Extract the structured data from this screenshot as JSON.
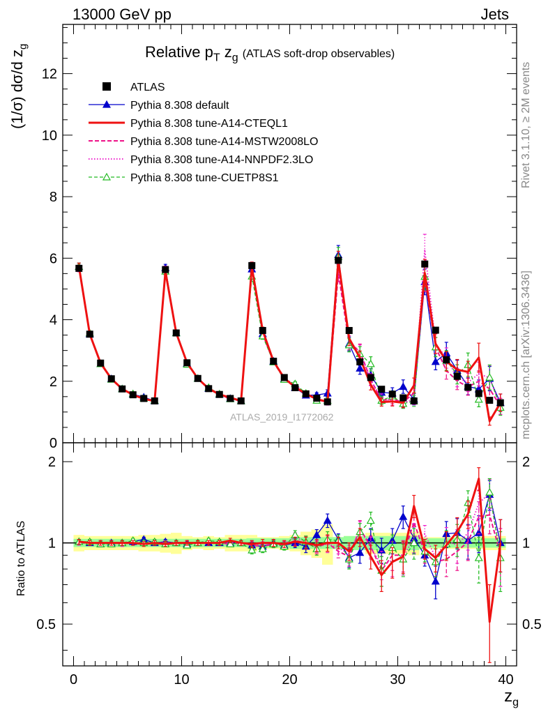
{
  "header": {
    "energy": "13000 GeV pp",
    "process": "Jets"
  },
  "side_text": {
    "rivet": "Rivet 3.1.10, ≥ 2M events",
    "mcplots": "mcplots.cern.ch [arXiv:1306.3436]"
  },
  "labels": {
    "title_main": "Relative p",
    "title_sub_T": "T",
    "title_z": "z",
    "title_sub_g": "g",
    "title_tail": "(ATLAS soft-drop observables)",
    "ylabel_main": "(1/σ) dσ/d z",
    "ylabel_main_sub": "g",
    "ylabel_ratio": "Ratio to ATLAS",
    "xlabel": "z",
    "xlabel_sub": "g",
    "analysis": "ATLAS_2019_I1772062"
  },
  "colors": {
    "atlas": "#000000",
    "default": "#0000cc",
    "cteql1": "#ee1111",
    "mstw": "#ee1188",
    "nnpdf": "#ee22cc",
    "cuetp8s1": "#22bb22",
    "band_outer": "#ffff99",
    "band_inner": "#99ff99"
  },
  "chart_data": {
    "type": "line",
    "x": [
      0.5,
      1.5,
      2.5,
      3.5,
      4.5,
      5.5,
      6.5,
      7.5,
      8.5,
      9.5,
      10.5,
      11.5,
      12.5,
      13.5,
      14.5,
      15.5,
      16.5,
      17.5,
      18.5,
      19.5,
      20.5,
      21.5,
      22.5,
      23.5,
      24.5,
      25.5,
      26.5,
      27.5,
      28.5,
      29.5,
      30.5,
      31.5,
      32.5,
      33.5,
      34.5,
      35.5,
      36.5,
      37.5,
      38.5,
      39.5
    ],
    "xlim": [
      -1,
      41
    ],
    "main": {
      "ylim": [
        0,
        13.6
      ],
      "yticks": [
        0,
        2,
        4,
        6,
        8,
        10,
        12
      ],
      "yticklabels": [
        "0",
        "2",
        "4",
        "6",
        "8",
        "10",
        "12"
      ]
    },
    "ratio": {
      "ylim": [
        0.35,
        2.35
      ],
      "yticks": [
        0.5,
        1,
        2
      ],
      "yticklabels": [
        "0.5",
        "1",
        "2"
      ]
    },
    "xticks": [
      0,
      10,
      20,
      30,
      40
    ],
    "xticklabels": [
      "0",
      "10",
      "20",
      "30",
      "40"
    ],
    "legend_position": "top-left",
    "atlas": {
      "name": "ATLAS",
      "values": [
        5.67,
        3.53,
        2.59,
        2.08,
        1.75,
        1.56,
        1.44,
        1.36,
        5.63,
        3.57,
        2.6,
        2.09,
        1.76,
        1.57,
        1.44,
        1.36,
        5.76,
        3.65,
        2.65,
        2.12,
        1.79,
        1.59,
        1.45,
        1.33,
        5.93,
        3.65,
        2.63,
        2.12,
        1.74,
        1.58,
        1.46,
        1.36,
        5.81,
        3.66,
        2.7,
        2.16,
        1.8,
        1.6,
        1.38,
        1.3
      ],
      "band_inner": [
        0.035,
        0.035,
        0.035,
        0.035,
        0.035,
        0.035,
        0.035,
        0.035,
        0.035,
        0.035,
        0.035,
        0.035,
        0.035,
        0.035,
        0.035,
        0.035,
        0.04,
        0.04,
        0.04,
        0.04,
        0.05,
        0.05,
        0.05,
        0.05,
        0.05,
        0.06,
        0.06,
        0.06,
        0.06,
        0.06,
        0.06,
        0.06,
        0.04,
        0.04,
        0.04,
        0.04,
        0.04,
        0.04,
        0.04,
        0.04
      ],
      "band_outer": [
        0.07,
        0.06,
        0.06,
        0.06,
        0.06,
        0.06,
        0.07,
        0.07,
        0.08,
        0.09,
        0.06,
        0.05,
        0.06,
        0.05,
        0.07,
        0.07,
        0.07,
        0.05,
        0.05,
        0.06,
        0.07,
        0.1,
        0.12,
        0.17,
        0.05,
        0.06,
        0.06,
        0.09,
        0.09,
        0.09,
        0.09,
        0.1,
        0.05,
        0.05,
        0.05,
        0.05,
        0.05,
        0.05,
        0.06,
        0.06
      ]
    },
    "series": [
      {
        "name": "Pythia 8.308 default",
        "key": "default",
        "marker": "triangle-filled",
        "dash": "",
        "width": 1.3,
        "ratio": [
          1.01,
          1.0,
          0.99,
          1.0,
          1.0,
          1.01,
          1.03,
          1.0,
          1.01,
          1.0,
          0.99,
          1.0,
          1.0,
          1.0,
          1.0,
          1.0,
          0.98,
          0.97,
          1.0,
          0.98,
          1.0,
          0.97,
          1.07,
          1.21,
          1.03,
          0.88,
          0.92,
          1.04,
          0.94,
          1.02,
          1.25,
          1.04,
          0.9,
          0.72,
          1.08,
          1.09,
          1.02,
          1.09,
          1.51,
          1.0
        ],
        "err": [
          0.02,
          0.02,
          0.02,
          0.02,
          0.02,
          0.02,
          0.02,
          0.02,
          0.02,
          0.02,
          0.02,
          0.02,
          0.02,
          0.02,
          0.02,
          0.02,
          0.03,
          0.03,
          0.03,
          0.03,
          0.04,
          0.05,
          0.05,
          0.07,
          0.05,
          0.07,
          0.08,
          0.09,
          0.1,
          0.11,
          0.12,
          0.13,
          0.08,
          0.1,
          0.12,
          0.14,
          0.15,
          0.17,
          0.19,
          0.22
        ]
      },
      {
        "name": "Pythia 8.308 tune-A14-CTEQL1",
        "key": "cteql1",
        "marker": "none",
        "dash": "",
        "width": 3,
        "ratio": [
          1.01,
          1.0,
          1.0,
          1.0,
          1.0,
          1.0,
          0.99,
          1.0,
          0.99,
          1.0,
          1.0,
          1.0,
          1.0,
          1.0,
          1.02,
          1.0,
          0.99,
          1.0,
          1.0,
          0.99,
          1.01,
          1.0,
          0.98,
          1.0,
          1.0,
          0.93,
          1.05,
          0.89,
          0.76,
          0.85,
          0.89,
          1.37,
          0.95,
          0.88,
          0.98,
          1.1,
          1.28,
          1.73,
          0.51,
          1.0
        ],
        "err": [
          0.02,
          0.02,
          0.02,
          0.02,
          0.02,
          0.02,
          0.02,
          0.02,
          0.02,
          0.02,
          0.02,
          0.02,
          0.02,
          0.02,
          0.02,
          0.02,
          0.03,
          0.03,
          0.03,
          0.03,
          0.04,
          0.05,
          0.05,
          0.07,
          0.05,
          0.07,
          0.08,
          0.09,
          0.1,
          0.11,
          0.12,
          0.13,
          0.08,
          0.1,
          0.12,
          0.14,
          0.15,
          0.17,
          0.19,
          0.22
        ]
      },
      {
        "name": "Pythia 8.308 tune-A14-MSTW2008LO",
        "key": "mstw",
        "marker": "none",
        "dash": "6,3",
        "width": 2,
        "ratio": [
          1.0,
          1.0,
          1.0,
          1.0,
          1.0,
          1.0,
          1.0,
          1.0,
          1.0,
          1.0,
          1.0,
          1.0,
          1.0,
          1.0,
          0.99,
          1.0,
          0.98,
          0.97,
          0.99,
          0.98,
          1.02,
          1.0,
          0.96,
          1.0,
          0.93,
          0.89,
          1.13,
          0.97,
          0.79,
          0.9,
          0.9,
          1.19,
          0.92,
          0.85,
          0.87,
          0.93,
          1.01,
          1.25,
          1.27,
          0.91
        ],
        "err": [
          0.02,
          0.02,
          0.02,
          0.02,
          0.02,
          0.02,
          0.02,
          0.02,
          0.02,
          0.02,
          0.02,
          0.02,
          0.02,
          0.02,
          0.02,
          0.02,
          0.03,
          0.03,
          0.03,
          0.03,
          0.04,
          0.05,
          0.05,
          0.07,
          0.05,
          0.07,
          0.08,
          0.09,
          0.1,
          0.11,
          0.12,
          0.13,
          0.08,
          0.1,
          0.12,
          0.14,
          0.15,
          0.17,
          0.19,
          0.22
        ]
      },
      {
        "name": "Pythia 8.308 tune-A14-NNPDF2.3LO",
        "key": "nnpdf",
        "marker": "none",
        "dash": "1.5,2.5",
        "width": 2,
        "ratio": [
          1.0,
          1.0,
          1.0,
          1.0,
          0.99,
          1.0,
          1.0,
          1.0,
          1.0,
          1.0,
          1.0,
          1.0,
          1.0,
          1.0,
          1.0,
          1.0,
          0.99,
          0.98,
          1.0,
          0.99,
          1.05,
          1.01,
          0.97,
          0.99,
          0.96,
          0.91,
          1.12,
          0.96,
          0.83,
          0.86,
          0.88,
          1.05,
          1.08,
          0.88,
          1.02,
          0.98,
          1.09,
          1.4,
          1.53,
          0.91
        ],
        "err": [
          0.02,
          0.02,
          0.02,
          0.02,
          0.02,
          0.02,
          0.02,
          0.02,
          0.02,
          0.02,
          0.02,
          0.02,
          0.02,
          0.02,
          0.02,
          0.02,
          0.03,
          0.03,
          0.03,
          0.03,
          0.04,
          0.05,
          0.05,
          0.07,
          0.05,
          0.07,
          0.08,
          0.09,
          0.1,
          0.11,
          0.12,
          0.13,
          0.08,
          0.1,
          0.12,
          0.14,
          0.15,
          0.17,
          0.19,
          0.22
        ]
      },
      {
        "name": "Pythia 8.308 tune-CUETP8S1",
        "key": "cuetp8s1",
        "marker": "triangle-open",
        "dash": "5,3",
        "width": 1.3,
        "ratio": [
          1.01,
          1.01,
          0.99,
          0.99,
          1.0,
          1.02,
          1.0,
          1.01,
          0.99,
          1.0,
          0.98,
          1.0,
          1.02,
          1.01,
          0.99,
          1.0,
          0.94,
          0.95,
          0.99,
          0.97,
          1.07,
          1.01,
          0.95,
          1.03,
          1.02,
          0.87,
          1.1,
          1.21,
          0.79,
          0.96,
          0.87,
          1.0,
          0.93,
          0.85,
          0.99,
          1.03,
          1.41,
          0.88,
          1.54,
          0.88
        ],
        "err": [
          0.02,
          0.02,
          0.02,
          0.02,
          0.02,
          0.02,
          0.02,
          0.02,
          0.02,
          0.02,
          0.02,
          0.02,
          0.02,
          0.02,
          0.02,
          0.02,
          0.03,
          0.03,
          0.03,
          0.03,
          0.04,
          0.05,
          0.05,
          0.07,
          0.05,
          0.07,
          0.08,
          0.09,
          0.1,
          0.11,
          0.12,
          0.13,
          0.08,
          0.1,
          0.12,
          0.14,
          0.15,
          0.17,
          0.19,
          0.22
        ]
      }
    ]
  }
}
